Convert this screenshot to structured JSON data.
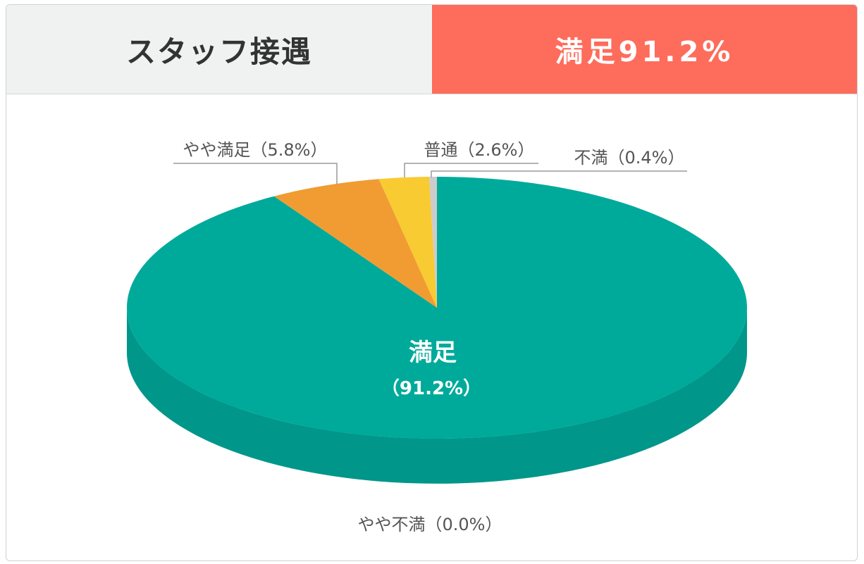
{
  "header": {
    "title": "スタッフ接遇",
    "metric": "満足91.2%"
  },
  "colors": {
    "header_left_bg": "#eff2f1",
    "header_right_bg": "#fe6c5b",
    "satisfied": "#00aa9b",
    "somewhat_satisfied": "#f09c33",
    "neutral": "#f8cb32",
    "dissatisfied": "#cccccc",
    "somewhat_dissatisfied": "#9a9a9a"
  },
  "chart_data": {
    "type": "pie",
    "style": "3d",
    "slices": [
      {
        "label": "満足",
        "value": 91.2,
        "display": "満足",
        "display_value": "（91.2%）",
        "color": "#00aa9b",
        "side_color": "#00968a"
      },
      {
        "label": "やや満足",
        "value": 5.8,
        "display": "やや満足（5.8%）",
        "color": "#f09c33",
        "side_color": "#d88a2a"
      },
      {
        "label": "普通",
        "value": 2.6,
        "display": "普通（2.6%）",
        "color": "#f8cb32",
        "side_color": "#dcb52a"
      },
      {
        "label": "不満",
        "value": 0.4,
        "display": "不満（0.4%）",
        "color": "#cccccc",
        "side_color": "#b5b5b5"
      },
      {
        "label": "やや不満",
        "value": 0.0,
        "display": "やや不満（0.0%）",
        "color": "#9a9a9a",
        "side_color": "#888888"
      }
    ]
  }
}
